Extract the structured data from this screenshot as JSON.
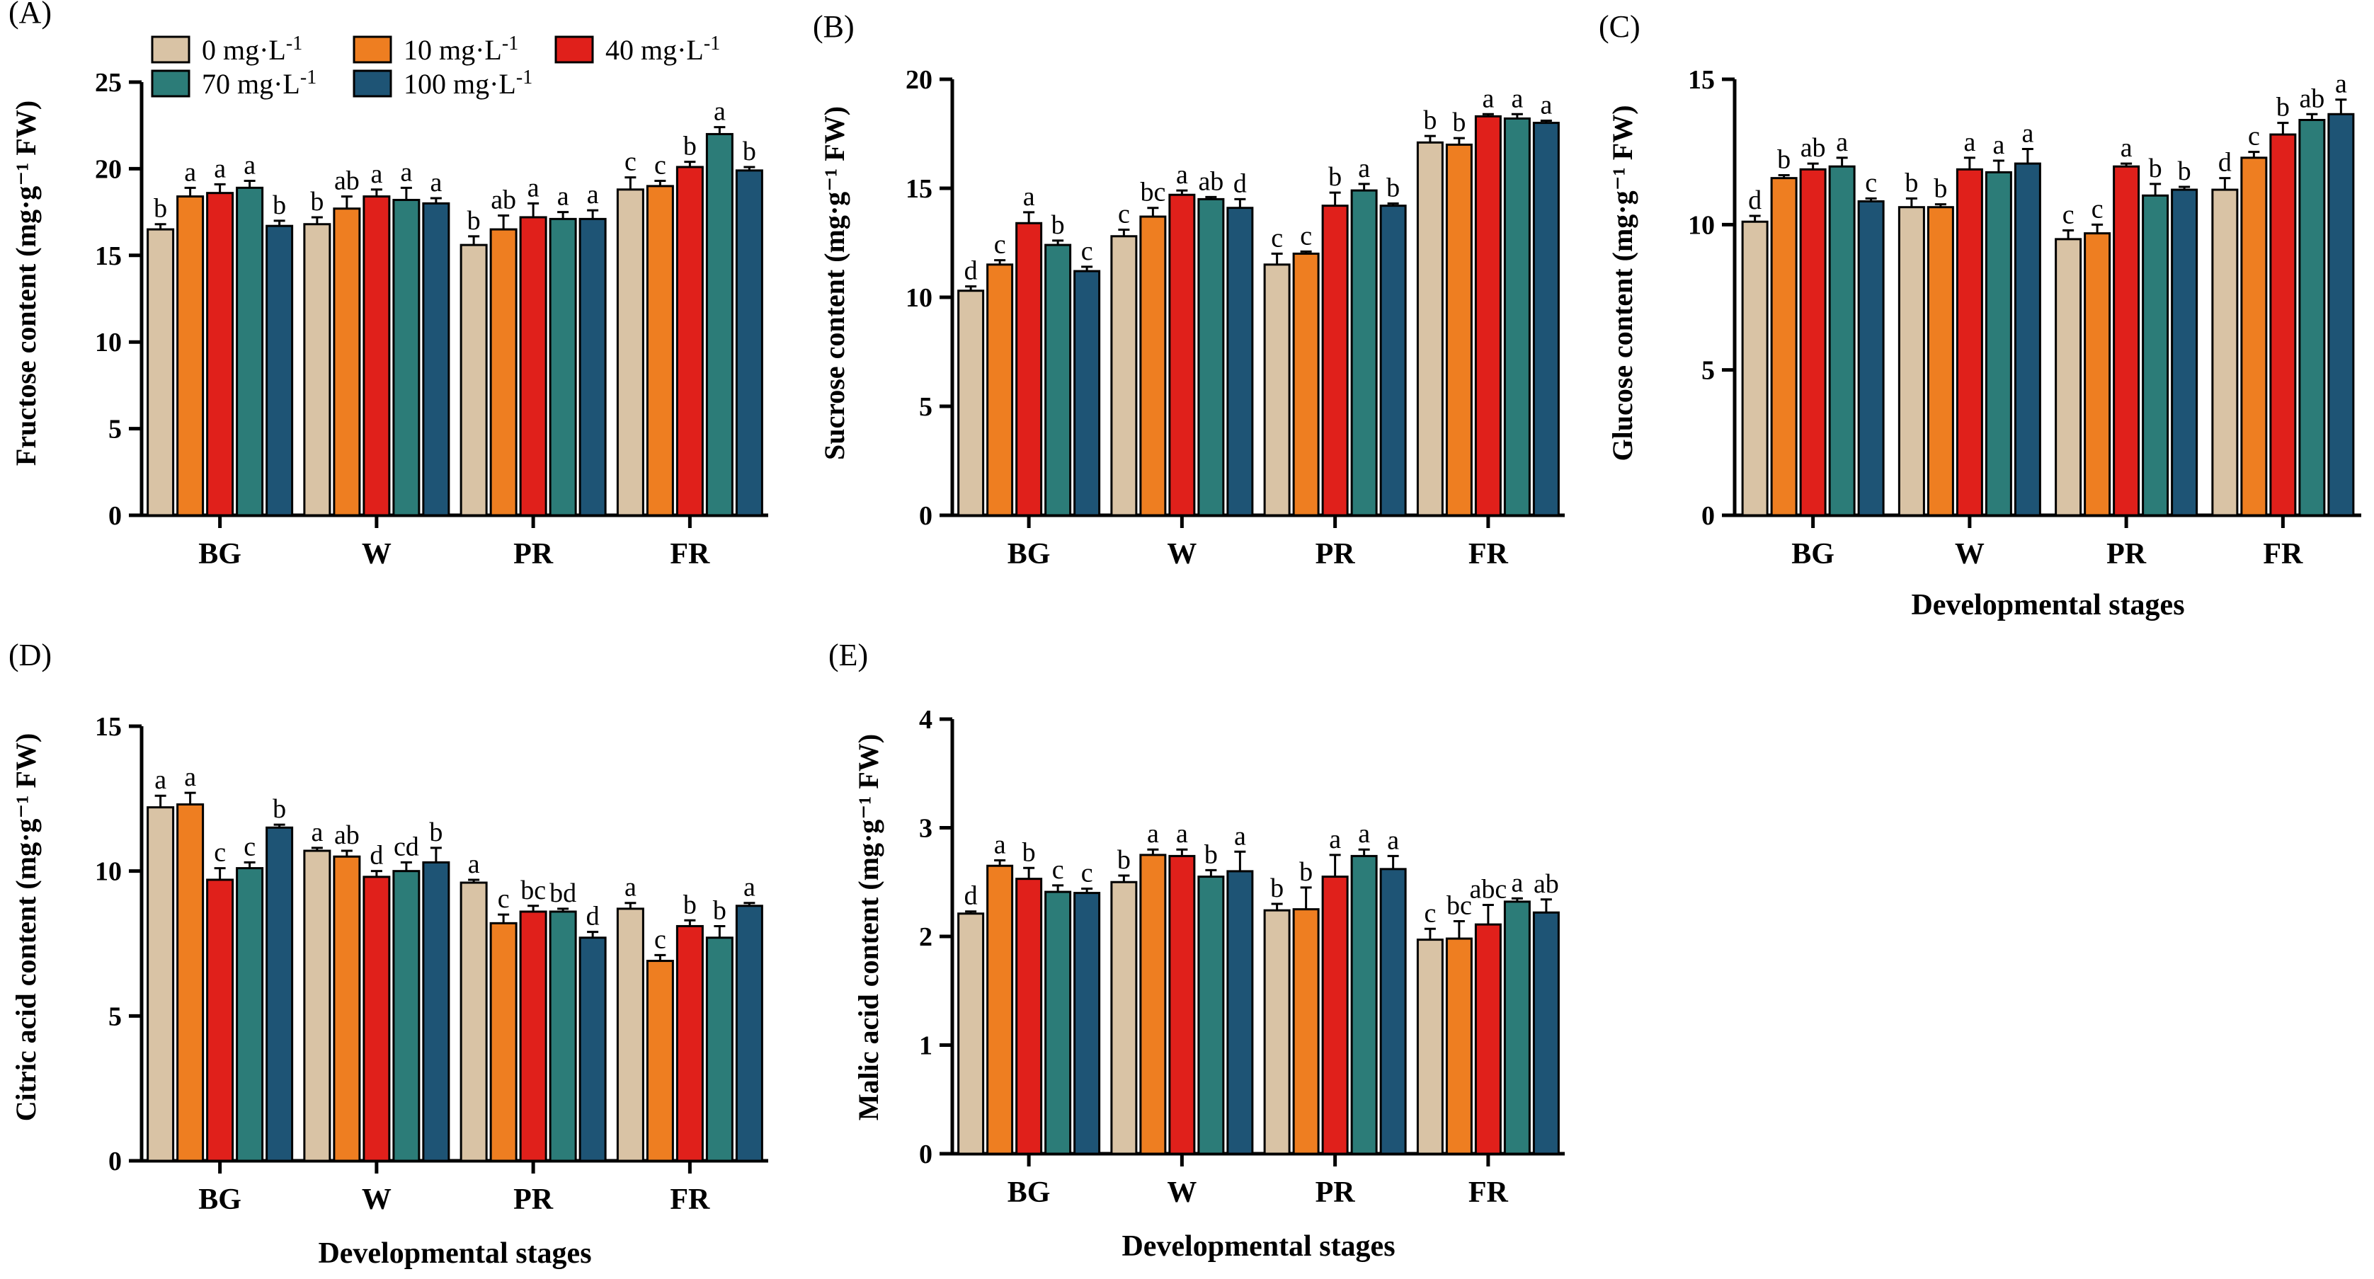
{
  "legend": {
    "items": [
      {
        "label": "0 mg·L",
        "sup": "-1",
        "color": "#D9C3A5"
      },
      {
        "label": "10 mg·L",
        "sup": "-1",
        "color": "#EE7E21"
      },
      {
        "label": "40 mg·L",
        "sup": "-1",
        "color": "#E0201B"
      },
      {
        "label": "70 mg·L",
        "sup": "-1",
        "color": "#2C7C78"
      },
      {
        "label": "100 mg·L",
        "sup": "-1",
        "color": "#1E5475"
      }
    ]
  },
  "chart_data": [
    {
      "panel": "(A)",
      "type": "bar",
      "ylabel": "Fructose content (mg·g⁻¹ FW)",
      "xlabel": "",
      "categories": [
        "BG",
        "W",
        "PR",
        "FR"
      ],
      "ylim": [
        0,
        25
      ],
      "yticks": [
        0,
        5,
        10,
        15,
        20,
        25
      ],
      "series": [
        {
          "name": "0 mg·L-1",
          "values": [
            16.5,
            16.8,
            15.6,
            18.8
          ],
          "errors": [
            0.3,
            0.4,
            0.5,
            0.7
          ],
          "letters": [
            "b",
            "b",
            "b",
            "c"
          ]
        },
        {
          "name": "10 mg·L-1",
          "values": [
            18.4,
            17.7,
            16.5,
            19.0
          ],
          "errors": [
            0.5,
            0.7,
            0.8,
            0.3
          ],
          "letters": [
            "a",
            "ab",
            "ab",
            "c"
          ]
        },
        {
          "name": "40 mg·L-1",
          "values": [
            18.6,
            18.4,
            17.2,
            20.1
          ],
          "errors": [
            0.5,
            0.4,
            0.8,
            0.3
          ],
          "letters": [
            "a",
            "a",
            "a",
            "b"
          ]
        },
        {
          "name": "70 mg·L-1",
          "values": [
            18.9,
            18.2,
            17.1,
            22.0
          ],
          "errors": [
            0.4,
            0.7,
            0.4,
            0.4
          ],
          "letters": [
            "a",
            "a",
            "a",
            "a"
          ]
        },
        {
          "name": "100 mg·L-1",
          "values": [
            16.7,
            18.0,
            17.1,
            19.9
          ],
          "errors": [
            0.3,
            0.3,
            0.5,
            0.2
          ],
          "letters": [
            "b",
            "a",
            "a",
            "b"
          ]
        }
      ]
    },
    {
      "panel": "(B)",
      "type": "bar",
      "ylabel": "Sucrose content (mg·g⁻¹ FW)",
      "xlabel": "",
      "categories": [
        "BG",
        "W",
        "PR",
        "FR"
      ],
      "ylim": [
        0,
        20
      ],
      "yticks": [
        0,
        5,
        10,
        15,
        20
      ],
      "series": [
        {
          "name": "0 mg·L-1",
          "values": [
            10.3,
            12.8,
            11.5,
            17.1
          ],
          "errors": [
            0.2,
            0.3,
            0.5,
            0.3
          ],
          "letters": [
            "d",
            "c",
            "c",
            "b"
          ]
        },
        {
          "name": "10 mg·L-1",
          "values": [
            11.5,
            13.7,
            12.0,
            17.0
          ],
          "errors": [
            0.2,
            0.4,
            0.1,
            0.3
          ],
          "letters": [
            "c",
            "bc",
            "c",
            "b"
          ]
        },
        {
          "name": "40 mg·L-1",
          "values": [
            13.4,
            14.7,
            14.2,
            18.3
          ],
          "errors": [
            0.5,
            0.2,
            0.6,
            0.1
          ],
          "letters": [
            "a",
            "a",
            "b",
            "a"
          ]
        },
        {
          "name": "70 mg·L-1",
          "values": [
            12.4,
            14.5,
            14.9,
            18.2
          ],
          "errors": [
            0.2,
            0.1,
            0.3,
            0.2
          ],
          "letters": [
            "b",
            "ab",
            "a",
            "a"
          ]
        },
        {
          "name": "100 mg·L-1",
          "values": [
            11.2,
            14.1,
            14.2,
            18.0
          ],
          "errors": [
            0.2,
            0.4,
            0.1,
            0.1
          ],
          "letters": [
            "c",
            "d",
            "b",
            "a"
          ]
        }
      ]
    },
    {
      "panel": "(C)",
      "type": "bar",
      "ylabel": "Glucose content (mg·g⁻¹ FW)",
      "xlabel": "Developmental stages",
      "categories": [
        "BG",
        "W",
        "PR",
        "FR"
      ],
      "ylim": [
        0,
        15
      ],
      "yticks": [
        0,
        5,
        10,
        15
      ],
      "series": [
        {
          "name": "0 mg·L-1",
          "values": [
            10.1,
            10.6,
            9.5,
            11.2
          ],
          "errors": [
            0.2,
            0.3,
            0.3,
            0.4
          ],
          "letters": [
            "d",
            "b",
            "c",
            "d"
          ]
        },
        {
          "name": "10 mg·L-1",
          "values": [
            11.6,
            10.6,
            9.7,
            12.3
          ],
          "errors": [
            0.1,
            0.1,
            0.3,
            0.2
          ],
          "letters": [
            "b",
            "b",
            "c",
            "c"
          ]
        },
        {
          "name": "40 mg·L-1",
          "values": [
            11.9,
            11.9,
            12.0,
            13.1
          ],
          "errors": [
            0.2,
            0.4,
            0.1,
            0.4
          ],
          "letters": [
            "ab",
            "a",
            "a",
            "b"
          ]
        },
        {
          "name": "70 mg·L-1",
          "values": [
            12.0,
            11.8,
            11.0,
            13.6
          ],
          "errors": [
            0.3,
            0.4,
            0.4,
            0.2
          ],
          "letters": [
            "a",
            "a",
            "b",
            "ab"
          ]
        },
        {
          "name": "100 mg·L-1",
          "values": [
            10.8,
            12.1,
            11.2,
            13.8
          ],
          "errors": [
            0.1,
            0.5,
            0.1,
            0.5
          ],
          "letters": [
            "c",
            "a",
            "b",
            "a"
          ]
        }
      ]
    },
    {
      "panel": "(D)",
      "type": "bar",
      "ylabel": "Citric acid content (mg·g⁻¹ FW)",
      "xlabel": "Developmental stages",
      "categories": [
        "BG",
        "W",
        "PR",
        "FR"
      ],
      "ylim": [
        0,
        15
      ],
      "yticks": [
        0,
        5,
        10,
        15
      ],
      "series": [
        {
          "name": "0 mg·L-1",
          "values": [
            12.2,
            10.7,
            9.6,
            8.7
          ],
          "errors": [
            0.4,
            0.1,
            0.1,
            0.2
          ],
          "letters": [
            "a",
            "a",
            "a",
            "a"
          ]
        },
        {
          "name": "10 mg·L-1",
          "values": [
            12.3,
            10.5,
            8.2,
            6.9
          ],
          "errors": [
            0.4,
            0.2,
            0.3,
            0.2
          ],
          "letters": [
            "a",
            "ab",
            "c",
            "c"
          ]
        },
        {
          "name": "40 mg·L-1",
          "values": [
            9.7,
            9.8,
            8.6,
            8.1
          ],
          "errors": [
            0.4,
            0.2,
            0.2,
            0.2
          ],
          "letters": [
            "c",
            "d",
            "bc",
            "b"
          ]
        },
        {
          "name": "70 mg·L-1",
          "values": [
            10.1,
            10.0,
            8.6,
            7.7
          ],
          "errors": [
            0.2,
            0.3,
            0.1,
            0.4
          ],
          "letters": [
            "c",
            "cd",
            "bd",
            "b"
          ]
        },
        {
          "name": "100 mg·L-1",
          "values": [
            11.5,
            10.3,
            7.7,
            8.8
          ],
          "errors": [
            0.1,
            0.5,
            0.2,
            0.1
          ],
          "letters": [
            "b",
            "b",
            "d",
            "a"
          ]
        }
      ]
    },
    {
      "panel": "(E)",
      "type": "bar",
      "ylabel": "Malic acid content (mg·g⁻¹ FW)",
      "xlabel": "Developmental stages",
      "categories": [
        "BG",
        "W",
        "PR",
        "FR"
      ],
      "ylim": [
        0,
        4
      ],
      "yticks": [
        0,
        1,
        2,
        3,
        4
      ],
      "series": [
        {
          "name": "0 mg·L-1",
          "values": [
            2.21,
            2.5,
            2.24,
            1.97
          ],
          "errors": [
            0.02,
            0.06,
            0.06,
            0.1
          ],
          "letters": [
            "d",
            "b",
            "b",
            "c"
          ]
        },
        {
          "name": "10 mg·L-1",
          "values": [
            2.65,
            2.75,
            2.25,
            1.98
          ],
          "errors": [
            0.05,
            0.05,
            0.2,
            0.16
          ],
          "letters": [
            "a",
            "a",
            "b",
            "bc"
          ]
        },
        {
          "name": "40 mg·L-1",
          "values": [
            2.53,
            2.74,
            2.55,
            2.11
          ],
          "errors": [
            0.1,
            0.06,
            0.2,
            0.18
          ],
          "letters": [
            "b",
            "a",
            "a",
            "abc"
          ]
        },
        {
          "name": "70 mg·L-1",
          "values": [
            2.41,
            2.55,
            2.74,
            2.32
          ],
          "errors": [
            0.06,
            0.06,
            0.06,
            0.03
          ],
          "letters": [
            "c",
            "b",
            "a",
            "a"
          ]
        },
        {
          "name": "100 mg·L-1",
          "values": [
            2.4,
            2.6,
            2.62,
            2.22
          ],
          "errors": [
            0.04,
            0.18,
            0.12,
            0.12
          ],
          "letters": [
            "c",
            "a",
            "a",
            "ab"
          ]
        }
      ]
    }
  ]
}
